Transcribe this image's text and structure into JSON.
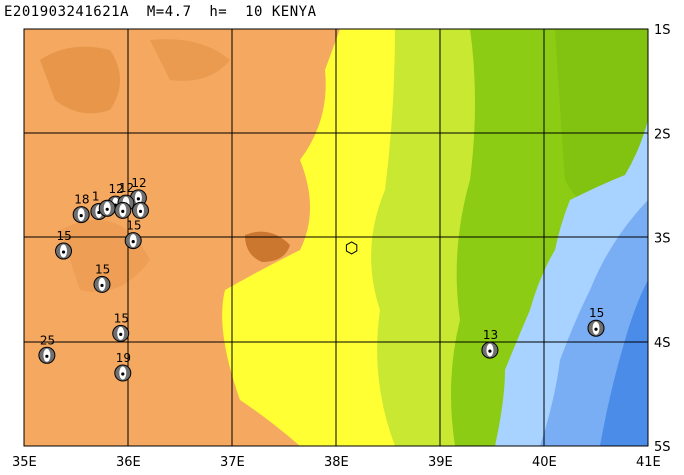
{
  "header": {
    "title": "E201903241621A  M=4.7  h=  10 KENYA"
  },
  "axes": {
    "lon_labels": [
      "35E",
      "36E",
      "37E",
      "38E",
      "39E",
      "40E",
      "41E"
    ],
    "lat_labels": [
      "1S",
      "2S",
      "3S",
      "4S",
      "5S"
    ],
    "lon_range": [
      35,
      41
    ],
    "lat_range": [
      -1,
      -5
    ]
  },
  "colors": {
    "highland": "#f4a860",
    "highland_dark": "#e08c3c",
    "yellow": "#ffff33",
    "lightgreen": "#c8e832",
    "green": "#8ccc14",
    "shallow_sea": "#a8d2ff",
    "deep_sea": "#4a8ce8"
  },
  "epicenter": {
    "lon": 38.15,
    "lat": -3.1,
    "icon": "hexagon-epicenter-icon"
  },
  "events": [
    {
      "label": "18",
      "lon": 35.55,
      "lat": -2.78
    },
    {
      "label": "12",
      "lon": 36.1,
      "lat": -2.62
    },
    {
      "label": "15",
      "lon": 35.38,
      "lat": -3.13
    },
    {
      "label": "15",
      "lon": 36.05,
      "lat": -3.03
    },
    {
      "label": "15",
      "lon": 35.75,
      "lat": -3.45
    },
    {
      "label": "15",
      "lon": 35.93,
      "lat": -3.92
    },
    {
      "label": "25",
      "lon": 35.22,
      "lat": -4.13
    },
    {
      "label": "19",
      "lon": 35.95,
      "lat": -4.3
    },
    {
      "label": "13",
      "lon": 39.48,
      "lat": -4.08
    },
    {
      "label": "15",
      "lon": 40.5,
      "lat": -3.87
    },
    {
      "label": "1",
      "lon": 35.72,
      "lat": -2.75
    },
    {
      "label": "12",
      "lon": 35.88,
      "lat": -2.68
    },
    {
      "label": "12",
      "lon": 35.98,
      "lat": -2.67
    },
    {
      "label": "",
      "lon": 35.8,
      "lat": -2.72
    },
    {
      "label": "",
      "lon": 35.95,
      "lat": -2.74
    },
    {
      "label": "",
      "lon": 36.12,
      "lat": -2.74
    }
  ]
}
